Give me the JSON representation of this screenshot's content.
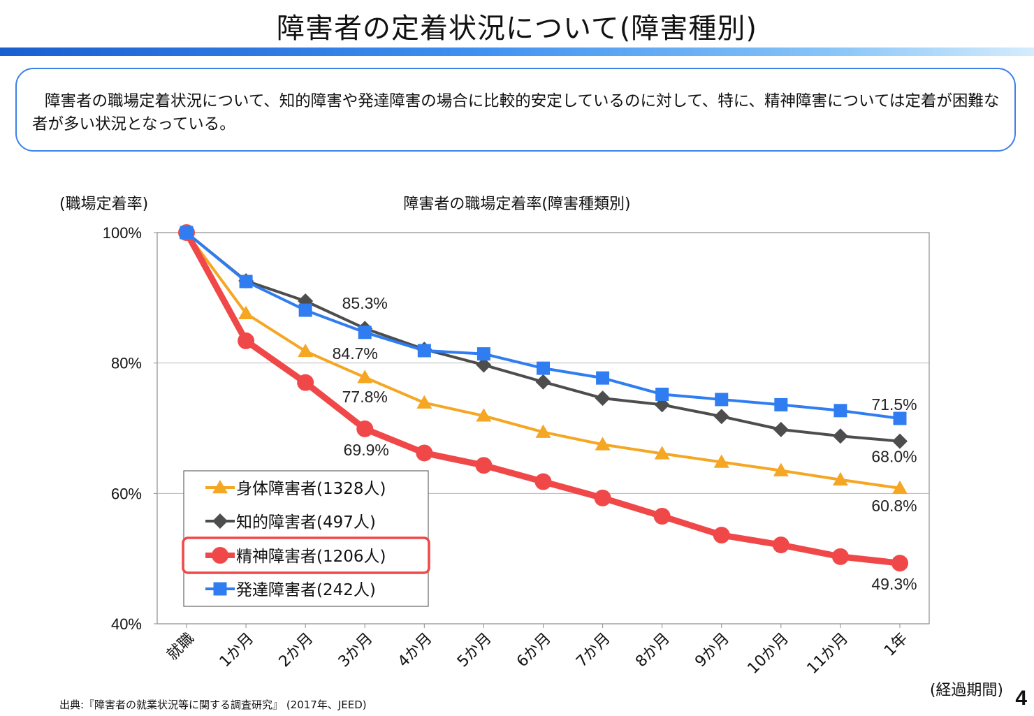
{
  "page": {
    "title": "障害者の定着状況について(障害種別)",
    "summary": "障害者の職場定着状況について、知的障害や発達障害の場合に比較的安定しているのに対して、特に、精神障害については定着が困難な者が多い状況となっている。",
    "source": "出典:『障害者の就業状況等に関する調査研究』 (2017年、JEED)",
    "page_number": "4"
  },
  "chart_data": {
    "type": "line",
    "title": "障害者の職場定着率(障害種類別)",
    "ylabel": "(職場定着率)",
    "xlabel": "(経過期間)",
    "ylim": [
      40,
      100
    ],
    "yticks": [
      "100%",
      "80%",
      "60%",
      "40%"
    ],
    "ytick_values": [
      100,
      80,
      60,
      40
    ],
    "grid": true,
    "legend_position": "bottom-left",
    "categories": [
      "就職",
      "1か月",
      "2か月",
      "3か月",
      "4か月",
      "5か月",
      "6か月",
      "7か月",
      "8か月",
      "9か月",
      "10か月",
      "11か月",
      "1年"
    ],
    "series": [
      {
        "name": "身体障害者(1328人)",
        "color": "#f5a623",
        "marker": "triangle",
        "values": [
          100,
          87.6,
          81.8,
          77.8,
          73.9,
          71.9,
          69.4,
          67.5,
          66.1,
          64.8,
          63.5,
          62.1,
          60.8
        ]
      },
      {
        "name": "知的障害者(497人)",
        "color": "#4d4d4d",
        "marker": "diamond",
        "values": [
          100,
          92.6,
          89.5,
          85.3,
          82.1,
          79.7,
          77.1,
          74.6,
          73.6,
          71.8,
          69.8,
          68.8,
          68.0
        ]
      },
      {
        "name": "精神障害者(1206人)",
        "color": "#f04848",
        "marker": "circle",
        "highlight": true,
        "values": [
          100,
          83.4,
          77.0,
          69.9,
          66.2,
          64.3,
          61.8,
          59.3,
          56.5,
          53.6,
          52.1,
          50.3,
          49.3
        ]
      },
      {
        "name": "発達障害者(242人)",
        "color": "#2f7df0",
        "marker": "square",
        "values": [
          100,
          92.5,
          88.1,
          84.7,
          81.9,
          81.4,
          79.2,
          77.7,
          75.2,
          74.4,
          73.6,
          72.7,
          71.5
        ]
      }
    ],
    "data_labels": [
      "85.3%",
      "84.7%",
      "77.8%",
      "69.9%",
      "71.5%",
      "68.0%",
      "60.8%",
      "49.3%"
    ]
  }
}
